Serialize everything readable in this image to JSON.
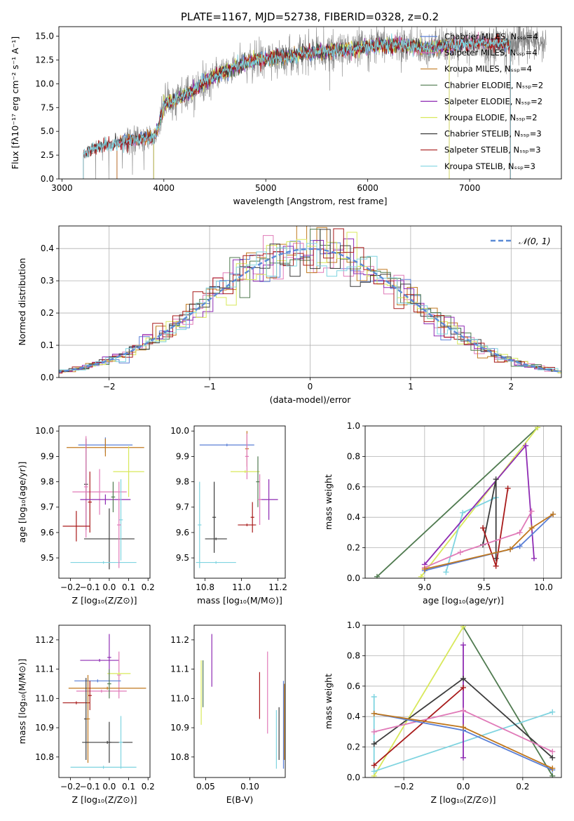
{
  "figure": {
    "title": "PLATE=1167, MJD=52738, FIBERID=0328, z=0.2"
  },
  "chart_data": [
    {
      "id": "spectrum",
      "type": "line",
      "title": "PLATE=1167, MJD=52738, FIBERID=0328, z=0.2",
      "xlabel": "wavelength [Angstrom, rest frame]",
      "ylabel": "Flux [fλ10⁻¹⁷ erg cm⁻² s⁻¹ A⁻¹]",
      "xlim": [
        2970,
        7900
      ],
      "ylim": [
        0,
        16
      ],
      "xticks": [
        3000,
        4000,
        5000,
        6000,
        7000
      ],
      "yticks": [
        0.0,
        2.5,
        5.0,
        7.5,
        10.0,
        12.5,
        15.0
      ],
      "grid": false,
      "legend_position": "top-right",
      "continuum": {
        "x": [
          3210,
          3300,
          3400,
          3500,
          3600,
          3700,
          3800,
          3900,
          3950,
          4000,
          4100,
          4200,
          4300,
          4400,
          4500,
          4600,
          4700,
          4800,
          4900,
          5000,
          5100,
          5200,
          5300,
          5400,
          5500,
          5600,
          5700,
          5800,
          5900,
          6000,
          6100,
          6200,
          6300,
          6400,
          6500,
          6600,
          6700,
          6800,
          6900,
          7000,
          7100,
          7200,
          7300,
          7400,
          7500,
          7600,
          7700,
          7800
        ],
        "y": [
          2.5,
          3.2,
          3.5,
          3.6,
          3.9,
          4.1,
          4.3,
          4.4,
          5.5,
          7.8,
          8.2,
          8.8,
          9.4,
          10.2,
          10.8,
          11.3,
          11.8,
          12.2,
          12.4,
          12.6,
          12.8,
          12.9,
          13.0,
          13.2,
          13.3,
          13.4,
          13.5,
          13.6,
          13.7,
          13.9,
          14.0,
          14.1,
          14.1,
          14.0,
          13.8,
          13.7,
          13.9,
          14.0,
          14.1,
          14.2,
          14.3,
          14.2,
          14.4,
          14.1,
          14.3,
          14.5,
          14.2,
          14.0
        ]
      },
      "data_noise_amplitude": 1.6,
      "series": [
        {
          "name": "Chabrier MILES, Nₛₛₚ=4",
          "color": "#5a7fd6",
          "start": 3540,
          "end": 7400
        },
        {
          "name": "Salpeter MILES, Nₛₛₚ=4",
          "color": "#e07ab8",
          "start": 3540,
          "end": 7400
        },
        {
          "name": "Kroupa MILES, Nₛₛₚ=4",
          "color": "#c0781e",
          "start": 3540,
          "end": 7400
        },
        {
          "name": "Chabrier ELODIE, Nₛₛₚ=2",
          "color": "#4f7a4f",
          "start": 3900,
          "end": 6800
        },
        {
          "name": "Salpeter ELODIE, Nₛₛₚ=2",
          "color": "#8e2bb3",
          "start": 3900,
          "end": 6800
        },
        {
          "name": "Kroupa ELODIE, Nₛₛₚ=2",
          "color": "#d8e85a",
          "start": 3900,
          "end": 6800
        },
        {
          "name": "Chabrier STELIB, Nₛₛₚ=3",
          "color": "#3c3c3c",
          "start": 3210,
          "end": 7400
        },
        {
          "name": "Salpeter STELIB, Nₛₛₚ=3",
          "color": "#a81a1a",
          "start": 3210,
          "end": 7400
        },
        {
          "name": "Kroupa STELIB, Nₛₛₚ=3",
          "color": "#7fd4e0",
          "start": 3210,
          "end": 7400
        }
      ]
    },
    {
      "id": "residuals",
      "type": "line",
      "xlabel": "(data-model)/error",
      "ylabel": "Normed distribution",
      "xlim": [
        -2.5,
        2.5
      ],
      "ylim": [
        0,
        0.47
      ],
      "xticks": [
        -2,
        -1,
        0,
        1,
        2
      ],
      "yticks": [
        0.0,
        0.1,
        0.2,
        0.3,
        0.4
      ],
      "grid": true,
      "legend_position": "top-right",
      "reference": {
        "name": "𝒩(0, 1)",
        "color": "#5b8bd6"
      },
      "bin_width": 0.1,
      "histograms": [
        {
          "name": "Chabrier MILES",
          "color": "#5a7fd6"
        },
        {
          "name": "Salpeter MILES",
          "color": "#e07ab8"
        },
        {
          "name": "Kroupa MILES",
          "color": "#c0781e"
        },
        {
          "name": "Chabrier ELODIE",
          "color": "#4f7a4f"
        },
        {
          "name": "Salpeter ELODIE",
          "color": "#8e2bb3"
        },
        {
          "name": "Kroupa ELODIE",
          "color": "#d8e85a"
        },
        {
          "name": "Chabrier STELIB",
          "color": "#3c3c3c"
        },
        {
          "name": "Salpeter STELIB",
          "color": "#a81a1a"
        },
        {
          "name": "Kroupa STELIB",
          "color": "#7fd4e0"
        }
      ]
    },
    {
      "id": "age-vs-Z",
      "type": "scatter",
      "xlabel": "Z [log₁₀(Z/Z⊙)]",
      "ylabel": "age  [log₁₀(age/yr)]",
      "xlim": [
        -0.26,
        0.21
      ],
      "ylim": [
        9.42,
        10.02
      ],
      "xticks": [
        -0.2,
        -0.1,
        0.0,
        0.1,
        0.2
      ],
      "yticks": [
        9.5,
        9.6,
        9.7,
        9.8,
        9.9,
        10.0
      ],
      "grid": false,
      "points": [
        {
          "color": "#5a7fd6",
          "x": -0.02,
          "xerr": 0.14,
          "y": 9.945,
          "yerr": 0.03
        },
        {
          "color": "#c0781e",
          "x": -0.02,
          "xerr": 0.2,
          "y": 9.935,
          "yerr": 0.035
        },
        {
          "color": "#3c3c3c",
          "x": -0.12,
          "xerr": 0.01,
          "y": 9.79,
          "yerr": 0.18
        },
        {
          "color": "#e07ab8",
          "x": -0.12,
          "xerr": 0.01,
          "y": 9.78,
          "yerr": 0.2
        },
        {
          "color": "#d8e85a",
          "x": 0.1,
          "xerr": 0.08,
          "y": 9.84,
          "yerr": 0.1
        },
        {
          "color": "#e07ab8",
          "x": -0.05,
          "xerr": 0.14,
          "y": 9.76,
          "yerr": 0.09
        },
        {
          "color": "#a81a1a",
          "x": -0.1,
          "xerr": 0.01,
          "y": 9.72,
          "yerr": 0.12
        },
        {
          "color": "#8e2bb3",
          "x": -0.02,
          "xerr": 0.13,
          "y": 9.73,
          "yerr": 0.02
        },
        {
          "color": "#4f7a4f",
          "x": 0.02,
          "xerr": 0.01,
          "y": 9.74,
          "yerr": 0.06
        },
        {
          "color": "#a81a1a",
          "x": -0.17,
          "xerr": 0.07,
          "y": 9.625,
          "yerr": 0.06
        },
        {
          "color": "#3c3c3c",
          "x": 0.0,
          "xerr": 0.13,
          "y": 9.575,
          "yerr": 0.12
        },
        {
          "color": "#7fd4e0",
          "x": -0.03,
          "xerr": 0.17,
          "y": 9.482,
          "yerr": 0.005
        },
        {
          "color": "#7fd4e0",
          "x": 0.06,
          "xerr": 0.01,
          "y": 9.65,
          "yerr": 0.16
        },
        {
          "color": "#e07ab8",
          "x": 0.05,
          "xerr": 0.01,
          "y": 9.63,
          "yerr": 0.17
        }
      ]
    },
    {
      "id": "age-vs-mass",
      "type": "scatter",
      "xlabel": "mass [log₁₀(M/M⊙)]",
      "ylabel": "",
      "xlim": [
        10.74,
        11.24
      ],
      "ylim": [
        9.42,
        10.02
      ],
      "xticks": [
        10.8,
        11.0,
        11.2
      ],
      "yticks": [
        9.5,
        9.6,
        9.7,
        9.8,
        9.9,
        10.0
      ],
      "grid": false,
      "points": [
        {
          "color": "#5a7fd6",
          "x": 10.92,
          "xerr": 0.15,
          "y": 9.945,
          "yerr": 0.005
        },
        {
          "color": "#c0781e",
          "x": 11.03,
          "xerr": 0.01,
          "y": 9.93,
          "yerr": 0.07
        },
        {
          "color": "#e07ab8",
          "x": 11.03,
          "xerr": 0.01,
          "y": 9.9,
          "yerr": 0.09
        },
        {
          "color": "#d8e85a",
          "x": 11.02,
          "xerr": 0.08,
          "y": 9.84,
          "yerr": 0.005
        },
        {
          "color": "#4f7a4f",
          "x": 11.09,
          "xerr": 0.01,
          "y": 9.8,
          "yerr": 0.1
        },
        {
          "color": "#8e2bb3",
          "x": 11.15,
          "xerr": 0.05,
          "y": 9.73,
          "yerr": 0.08
        },
        {
          "color": "#3c3c3c",
          "x": 10.85,
          "xerr": 0.01,
          "y": 9.66,
          "yerr": 0.14
        },
        {
          "color": "#e07ab8",
          "x": 11.1,
          "xerr": 0.01,
          "y": 9.73,
          "yerr": 0.1
        },
        {
          "color": "#a81a1a",
          "x": 11.03,
          "xerr": 0.05,
          "y": 9.63,
          "yerr": 0.005
        },
        {
          "color": "#a81a1a",
          "x": 11.06,
          "xerr": 0.01,
          "y": 9.66,
          "yerr": 0.06
        },
        {
          "color": "#3c3c3c",
          "x": 10.86,
          "xerr": 0.06,
          "y": 9.575,
          "yerr": 0.005
        },
        {
          "color": "#7fd4e0",
          "x": 10.77,
          "xerr": 0.01,
          "y": 9.63,
          "yerr": 0.17
        },
        {
          "color": "#7fd4e0",
          "x": 10.86,
          "xerr": 0.11,
          "y": 9.482,
          "yerr": 0.005
        }
      ]
    },
    {
      "id": "weight-vs-age",
      "type": "line",
      "xlabel": "age  [log₁₀(age/yr)]",
      "ylabel": "mass weight",
      "xlim": [
        8.5,
        10.15
      ],
      "ylim": [
        0,
        1.0
      ],
      "xticks": [
        9.0,
        9.5,
        10.0
      ],
      "yticks": [
        0.0,
        0.2,
        0.4,
        0.6,
        0.8,
        1.0
      ],
      "grid": true,
      "series": [
        {
          "color": "#4f7a4f",
          "x": [
            8.6,
            9.95
          ],
          "y": [
            0.01,
            0.99
          ]
        },
        {
          "color": "#d8e85a",
          "x": [
            8.97,
            9.95
          ],
          "y": [
            0.01,
            0.99
          ]
        },
        {
          "color": "#7fd4e0",
          "x": [
            9.18,
            9.32,
            9.6
          ],
          "y": [
            0.04,
            0.43,
            0.53
          ]
        },
        {
          "color": "#8e2bb3",
          "x": [
            9.0,
            9.85,
            9.92
          ],
          "y": [
            0.09,
            0.87,
            0.13
          ]
        },
        {
          "color": "#3c3c3c",
          "x": [
            9.49,
            9.6,
            9.6
          ],
          "y": [
            0.22,
            0.65,
            0.13
          ]
        },
        {
          "color": "#a81a1a",
          "x": [
            9.49,
            9.6,
            9.7
          ],
          "y": [
            0.33,
            0.08,
            0.59
          ]
        },
        {
          "color": "#e07ab8",
          "x": [
            9.0,
            9.3,
            9.8,
            9.9
          ],
          "y": [
            0.07,
            0.17,
            0.3,
            0.44
          ]
        },
        {
          "color": "#5a7fd6",
          "x": [
            9.0,
            9.72,
            9.8,
            10.08
          ],
          "y": [
            0.05,
            0.19,
            0.21,
            0.42
          ]
        },
        {
          "color": "#c0781e",
          "x": [
            9.0,
            9.72,
            9.9,
            10.08
          ],
          "y": [
            0.06,
            0.19,
            0.33,
            0.42
          ]
        }
      ]
    },
    {
      "id": "mass-vs-Z",
      "type": "scatter",
      "xlabel": "Z [log₁₀(Z/Z⊙)]",
      "ylabel": "mass [log₁₀(M/M⊙)]",
      "xlim": [
        -0.26,
        0.21
      ],
      "ylim": [
        10.73,
        11.25
      ],
      "xticks": [
        -0.2,
        -0.1,
        0.0,
        0.1,
        0.2
      ],
      "yticks": [
        10.8,
        10.9,
        11.0,
        11.1,
        11.2
      ],
      "grid": false,
      "points": [
        {
          "color": "#8e2bb3",
          "x": -0.05,
          "xerr": 0.1,
          "y": 11.13,
          "yerr": 0.005
        },
        {
          "color": "#8e2bb3",
          "x": 0.0,
          "xerr": 0.01,
          "y": 11.14,
          "yerr": 0.08
        },
        {
          "color": "#e07ab8",
          "x": 0.05,
          "xerr": 0.01,
          "y": 11.08,
          "yerr": 0.08
        },
        {
          "color": "#d8e85a",
          "x": 0.05,
          "xerr": 0.06,
          "y": 11.085,
          "yerr": 0.005
        },
        {
          "color": "#5a7fd6",
          "x": -0.06,
          "xerr": 0.12,
          "y": 11.06,
          "yerr": 0.005
        },
        {
          "color": "#c0781e",
          "x": -0.01,
          "xerr": 0.2,
          "y": 11.035,
          "yerr": 0.005
        },
        {
          "color": "#e07ab8",
          "x": -0.04,
          "xerr": 0.13,
          "y": 11.025,
          "yerr": 0.005
        },
        {
          "color": "#a81a1a",
          "x": -0.17,
          "xerr": 0.07,
          "y": 10.985,
          "yerr": 0.005
        },
        {
          "color": "#a81a1a",
          "x": -0.1,
          "xerr": 0.01,
          "y": 11.01,
          "yerr": 0.05
        },
        {
          "color": "#4f7a4f",
          "x": 0.0,
          "xerr": 0.01,
          "y": 11.05,
          "yerr": 0.05
        },
        {
          "color": "#3c3c3c",
          "x": -0.12,
          "xerr": 0.01,
          "y": 10.93,
          "yerr": 0.14
        },
        {
          "color": "#c0781e",
          "x": -0.11,
          "xerr": 0.01,
          "y": 10.93,
          "yerr": 0.15
        },
        {
          "color": "#3c3c3c",
          "x": -0.01,
          "xerr": 0.13,
          "y": 10.85,
          "yerr": 0.005
        },
        {
          "color": "#3c3c3c",
          "x": 0.0,
          "xerr": 0.01,
          "y": 10.85,
          "yerr": 0.07
        },
        {
          "color": "#7fd4e0",
          "x": -0.03,
          "xerr": 0.17,
          "y": 10.765,
          "yerr": 0.005
        },
        {
          "color": "#7fd4e0",
          "x": 0.06,
          "xerr": 0.01,
          "y": 10.85,
          "yerr": 0.09
        }
      ]
    },
    {
      "id": "mass-vs-ebv",
      "type": "scatter",
      "xlabel": "E(B-V)",
      "ylabel": "",
      "xlim": [
        0.037,
        0.14
      ],
      "ylim": [
        10.73,
        11.25
      ],
      "xticks": [
        0.05,
        0.1
      ],
      "yticks": [
        10.8,
        10.9,
        11.0,
        11.1,
        11.2
      ],
      "grid": false,
      "points": [
        {
          "color": "#d8e85a",
          "x": 0.045,
          "xerr": 0.0,
          "y": 11.02,
          "yerr": 0.11
        },
        {
          "color": "#4f7a4f",
          "x": 0.047,
          "xerr": 0.0,
          "y": 11.05,
          "yerr": 0.08
        },
        {
          "color": "#8e2bb3",
          "x": 0.057,
          "xerr": 0.0,
          "y": 11.13,
          "yerr": 0.09
        },
        {
          "color": "#a81a1a",
          "x": 0.111,
          "xerr": 0.0,
          "y": 11.01,
          "yerr": 0.08
        },
        {
          "color": "#e07ab8",
          "x": 0.12,
          "xerr": 0.0,
          "y": 11.02,
          "yerr": 0.14
        },
        {
          "color": "#7fd4e0",
          "x": 0.13,
          "xerr": 0.0,
          "y": 10.86,
          "yerr": 0.1
        },
        {
          "color": "#3c3c3c",
          "x": 0.133,
          "xerr": 0.0,
          "y": 10.88,
          "yerr": 0.09
        },
        {
          "color": "#5a7fd6",
          "x": 0.138,
          "xerr": 0.0,
          "y": 10.91,
          "yerr": 0.15
        },
        {
          "color": "#c0781e",
          "x": 0.139,
          "xerr": 0.0,
          "y": 10.92,
          "yerr": 0.13
        }
      ]
    },
    {
      "id": "weight-vs-Z",
      "type": "line",
      "xlabel": "Z [log₁₀(Z/Z⊙)]",
      "ylabel": "mass weight",
      "xlim": [
        -0.33,
        0.33
      ],
      "ylim": [
        0,
        1.0
      ],
      "xticks": [
        -0.2,
        0.0,
        0.2
      ],
      "yticks": [
        0.0,
        0.2,
        0.4,
        0.6,
        0.8,
        1.0
      ],
      "grid": true,
      "series": [
        {
          "color": "#4f7a4f",
          "x": [
            0.0,
            0.3
          ],
          "y": [
            0.99,
            0.01
          ]
        },
        {
          "color": "#d8e85a",
          "x": [
            -0.3,
            0.0
          ],
          "y": [
            0.01,
            0.99
          ]
        },
        {
          "color": "#7fd4e0",
          "x": [
            -0.3,
            -0.3,
            0.3
          ],
          "y": [
            0.53,
            0.04,
            0.43
          ]
        },
        {
          "color": "#8e2bb3",
          "x": [
            0.0,
            0.0
          ],
          "y": [
            0.87,
            0.13
          ]
        },
        {
          "color": "#3c3c3c",
          "x": [
            -0.3,
            0.0,
            0.3
          ],
          "y": [
            0.22,
            0.65,
            0.13
          ]
        },
        {
          "color": "#a81a1a",
          "x": [
            -0.3,
            0.0
          ],
          "y": [
            0.08,
            0.59
          ]
        },
        {
          "color": "#e07ab8",
          "x": [
            -0.3,
            0.0,
            0.3
          ],
          "y": [
            0.3,
            0.44,
            0.17
          ]
        },
        {
          "color": "#5a7fd6",
          "x": [
            -0.3,
            0.0,
            0.3
          ],
          "y": [
            0.42,
            0.31,
            0.05
          ]
        },
        {
          "color": "#c0781e",
          "x": [
            -0.3,
            0.0,
            0.3
          ],
          "y": [
            0.42,
            0.33,
            0.06
          ]
        }
      ]
    }
  ]
}
